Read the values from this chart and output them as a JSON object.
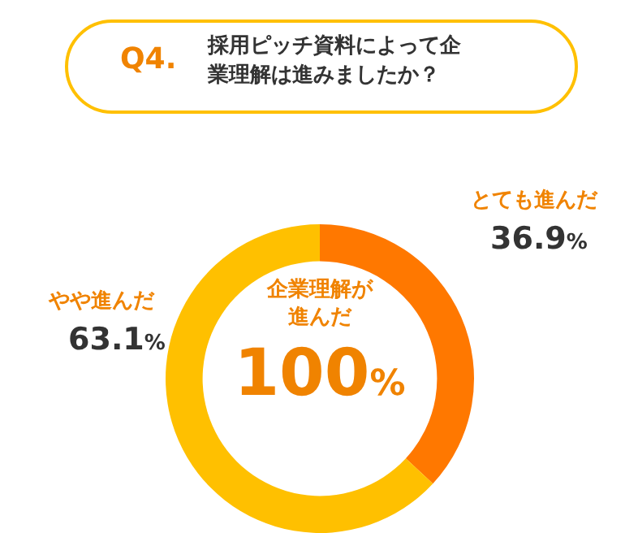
{
  "chart_data": {
    "type": "donut",
    "title": "採用ピッチ資料によって企業理解は進みましたか？",
    "annotations": [
      "Q4.",
      "企業理解が進んだ",
      "100%"
    ],
    "categories": [
      "とても進んだ",
      "やや進んだ"
    ],
    "values": [
      36.9,
      63.1
    ],
    "colors": [
      "#ff7800",
      "#ffc000"
    ],
    "value_labels": [
      "36.9%",
      "63.1%"
    ],
    "legend": false
  }
}
